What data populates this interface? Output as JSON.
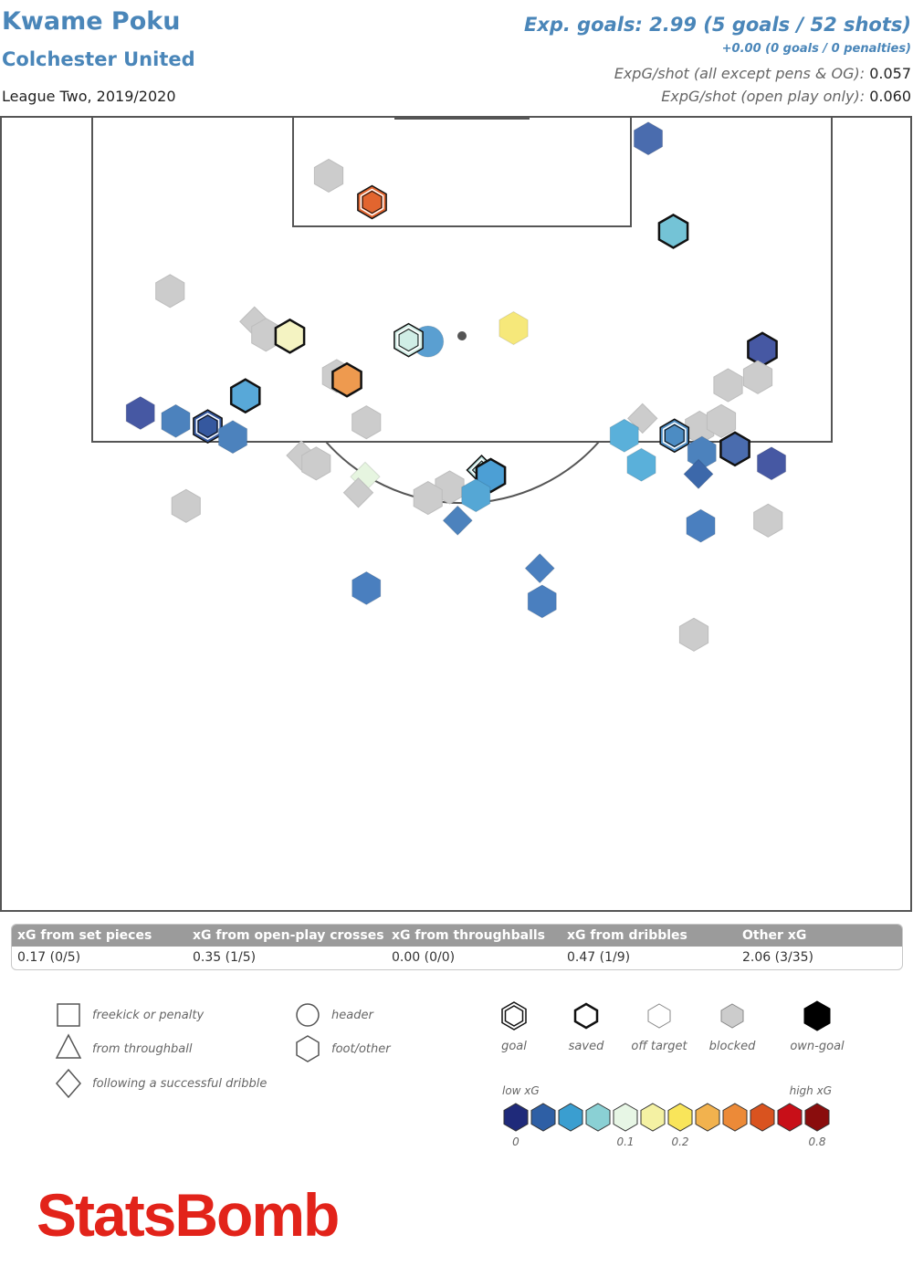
{
  "header": {
    "player": "Kwame Poku",
    "team": "Colchester United",
    "season": "League Two, 2019/2020",
    "xg_total": "Exp. goals: 2.99 (5 goals / 52 shots)",
    "xg_penalties": "+0.00 (0 goals / 0 penalties)",
    "xg_per_shot_label": "ExpG/shot (all except pens & OG):",
    "xg_per_shot_value": "0.057",
    "xg_open_play_label": "ExpG/shot (open play only):",
    "xg_open_play_value": "0.060"
  },
  "stats": [
    {
      "label": "xG from set pieces",
      "value": "0.17 (0/5)"
    },
    {
      "label": "xG from open-play crosses",
      "value": "0.35 (1/5)"
    },
    {
      "label": "xG from throughballs",
      "value": "0.00 (0/0)"
    },
    {
      "label": "xG from dribbles",
      "value": "0.47 (1/9)"
    },
    {
      "label": "Other xG",
      "value": "2.06 (3/35)"
    }
  ],
  "legend": {
    "types": [
      {
        "shape": "square",
        "label": "freekick or penalty"
      },
      {
        "shape": "triangle",
        "label": "from throughball"
      },
      {
        "shape": "diamond",
        "label": "following a successful dribble"
      },
      {
        "shape": "circle",
        "label": "header"
      },
      {
        "shape": "hexagon",
        "label": "foot/other"
      }
    ],
    "outcomes": [
      {
        "key": "goal",
        "label": "goal"
      },
      {
        "key": "saved",
        "label": "saved"
      },
      {
        "key": "off_target",
        "label": "off target"
      },
      {
        "key": "blocked",
        "label": "blocked"
      },
      {
        "key": "own_goal",
        "label": "own-goal"
      }
    ],
    "scale_low": "low xG",
    "scale_high": "high xG",
    "scale_colors": [
      "#1f2a7a",
      "#2e5fa5",
      "#3a9ed0",
      "#8ad0d4",
      "#e7f6e5",
      "#f4f1a3",
      "#f9e55a",
      "#f2b24e",
      "#ec8a38",
      "#d9531f",
      "#c80f18",
      "#8a0d0d"
    ],
    "scale_ticks": [
      {
        "label": "0",
        "index": 0
      },
      {
        "label": "0.1",
        "index": 4
      },
      {
        "label": "0.2",
        "index": 6
      },
      {
        "label": "0.8",
        "index": 11
      }
    ]
  },
  "brand": {
    "name": "StatsBomb",
    "color": "#e2231a"
  },
  "chart_data": {
    "type": "scatter",
    "x_axis": "pitch width (StatsBomb y)",
    "y_axis": "pitch length (StatsBomb x)",
    "xlim": [
      0,
      80
    ],
    "ylim": [
      60,
      120
    ],
    "shots": [
      {
        "x": 56.8,
        "y": 118.3,
        "shape": "hex",
        "outcome": "off_target",
        "color": "#4a6cae"
      },
      {
        "x": 28.8,
        "y": 115.5,
        "shape": "hex",
        "outcome": "blocked",
        "color": "#cccccc"
      },
      {
        "x": 32.6,
        "y": 113.5,
        "shape": "hex",
        "outcome": "goal",
        "color": "#e2652f"
      },
      {
        "x": 59.0,
        "y": 111.3,
        "shape": "hex",
        "outcome": "saved",
        "color": "#74c3d6"
      },
      {
        "x": 14.9,
        "y": 106.8,
        "shape": "hex",
        "outcome": "blocked",
        "color": "#cccccc"
      },
      {
        "x": 22.3,
        "y": 104.5,
        "shape": "diamond",
        "outcome": "blocked",
        "color": "#cccccc"
      },
      {
        "x": 23.3,
        "y": 103.5,
        "shape": "hex",
        "outcome": "blocked",
        "color": "#cccccc"
      },
      {
        "x": 25.4,
        "y": 103.4,
        "shape": "hex",
        "outcome": "saved",
        "color": "#f4f3c2"
      },
      {
        "x": 37.5,
        "y": 103.0,
        "shape": "circle",
        "outcome": "off_target",
        "color": "#5a9fd1"
      },
      {
        "x": 35.8,
        "y": 103.1,
        "shape": "hex",
        "outcome": "goal",
        "color": "#d0eee6"
      },
      {
        "x": 45.0,
        "y": 104.0,
        "shape": "hex",
        "outcome": "off_target",
        "color": "#f6e87a"
      },
      {
        "x": 66.8,
        "y": 102.4,
        "shape": "hex",
        "outcome": "saved",
        "color": "#4658a3"
      },
      {
        "x": 66.4,
        "y": 100.3,
        "shape": "hex",
        "outcome": "blocked",
        "color": "#cccccc"
      },
      {
        "x": 63.8,
        "y": 99.7,
        "shape": "hex",
        "outcome": "blocked",
        "color": "#cccccc"
      },
      {
        "x": 29.5,
        "y": 100.4,
        "shape": "hex",
        "outcome": "blocked",
        "color": "#cccccc"
      },
      {
        "x": 30.4,
        "y": 100.1,
        "shape": "hex",
        "outcome": "saved",
        "color": "#ee9a4f"
      },
      {
        "x": 21.5,
        "y": 98.9,
        "shape": "hex",
        "outcome": "saved",
        "color": "#58a8d8"
      },
      {
        "x": 12.3,
        "y": 97.6,
        "shape": "hex",
        "outcome": "off_target",
        "color": "#4658a3"
      },
      {
        "x": 15.4,
        "y": 97.0,
        "shape": "hex",
        "outcome": "off_target",
        "color": "#4c82bd"
      },
      {
        "x": 18.2,
        "y": 96.6,
        "shape": "hex",
        "outcome": "goal",
        "color": "#35589f"
      },
      {
        "x": 20.4,
        "y": 95.8,
        "shape": "hex",
        "outcome": "off_target",
        "color": "#4c82bd"
      },
      {
        "x": 32.1,
        "y": 96.9,
        "shape": "hex",
        "outcome": "blocked",
        "color": "#cccccc"
      },
      {
        "x": 56.3,
        "y": 97.2,
        "shape": "diamond",
        "outcome": "blocked",
        "color": "#cccccc"
      },
      {
        "x": 61.3,
        "y": 96.5,
        "shape": "hex",
        "outcome": "blocked",
        "color": "#cccccc"
      },
      {
        "x": 63.2,
        "y": 97.0,
        "shape": "hex",
        "outcome": "blocked",
        "color": "#cccccc"
      },
      {
        "x": 54.7,
        "y": 95.9,
        "shape": "hex",
        "outcome": "off_target",
        "color": "#5ab0da"
      },
      {
        "x": 59.1,
        "y": 95.9,
        "shape": "hex",
        "outcome": "goal",
        "color": "#4c8cc3"
      },
      {
        "x": 61.5,
        "y": 94.6,
        "shape": "hex",
        "outcome": "off_target",
        "color": "#4c82bd"
      },
      {
        "x": 64.4,
        "y": 94.9,
        "shape": "hex",
        "outcome": "saved",
        "color": "#4a6cae"
      },
      {
        "x": 67.6,
        "y": 93.8,
        "shape": "hex",
        "outcome": "off_target",
        "color": "#4658a3"
      },
      {
        "x": 56.2,
        "y": 93.7,
        "shape": "hex",
        "outcome": "off_target",
        "color": "#5ab0da"
      },
      {
        "x": 61.2,
        "y": 93.0,
        "shape": "diamond",
        "outcome": "off_target",
        "color": "#3c68aa"
      },
      {
        "x": 26.4,
        "y": 94.4,
        "shape": "diamond",
        "outcome": "blocked",
        "color": "#cccccc"
      },
      {
        "x": 27.7,
        "y": 93.8,
        "shape": "hex",
        "outcome": "blocked",
        "color": "#cccccc"
      },
      {
        "x": 32.0,
        "y": 92.8,
        "shape": "diamond",
        "outcome": "off_target",
        "color": "#e6f5e0"
      },
      {
        "x": 31.4,
        "y": 91.6,
        "shape": "diamond",
        "outcome": "blocked",
        "color": "#cccccc"
      },
      {
        "x": 42.2,
        "y": 93.3,
        "shape": "diamond",
        "outcome": "goal",
        "color": "#b3e0dc"
      },
      {
        "x": 43.0,
        "y": 92.9,
        "shape": "hex",
        "outcome": "saved",
        "color": "#4c9fd5"
      },
      {
        "x": 39.4,
        "y": 92.0,
        "shape": "hex",
        "outcome": "blocked",
        "color": "#cccccc"
      },
      {
        "x": 37.5,
        "y": 91.2,
        "shape": "hex",
        "outcome": "blocked",
        "color": "#cccccc"
      },
      {
        "x": 41.7,
        "y": 91.4,
        "shape": "hex",
        "outcome": "off_target",
        "color": "#55a7d5"
      },
      {
        "x": 40.1,
        "y": 89.5,
        "shape": "diamond",
        "outcome": "off_target",
        "color": "#4c82bd"
      },
      {
        "x": 16.3,
        "y": 90.6,
        "shape": "hex",
        "outcome": "blocked",
        "color": "#cccccc"
      },
      {
        "x": 61.4,
        "y": 89.1,
        "shape": "hex",
        "outcome": "off_target",
        "color": "#4a7fbf"
      },
      {
        "x": 67.3,
        "y": 89.5,
        "shape": "hex",
        "outcome": "blocked",
        "color": "#cccccc"
      },
      {
        "x": 47.3,
        "y": 85.9,
        "shape": "diamond",
        "outcome": "off_target",
        "color": "#4a7fbf"
      },
      {
        "x": 32.1,
        "y": 84.4,
        "shape": "hex",
        "outcome": "off_target",
        "color": "#4a7fbf"
      },
      {
        "x": 47.5,
        "y": 83.4,
        "shape": "hex",
        "outcome": "off_target",
        "color": "#4a7fbf"
      },
      {
        "x": 60.8,
        "y": 80.9,
        "shape": "hex",
        "outcome": "blocked",
        "color": "#cccccc"
      }
    ]
  }
}
